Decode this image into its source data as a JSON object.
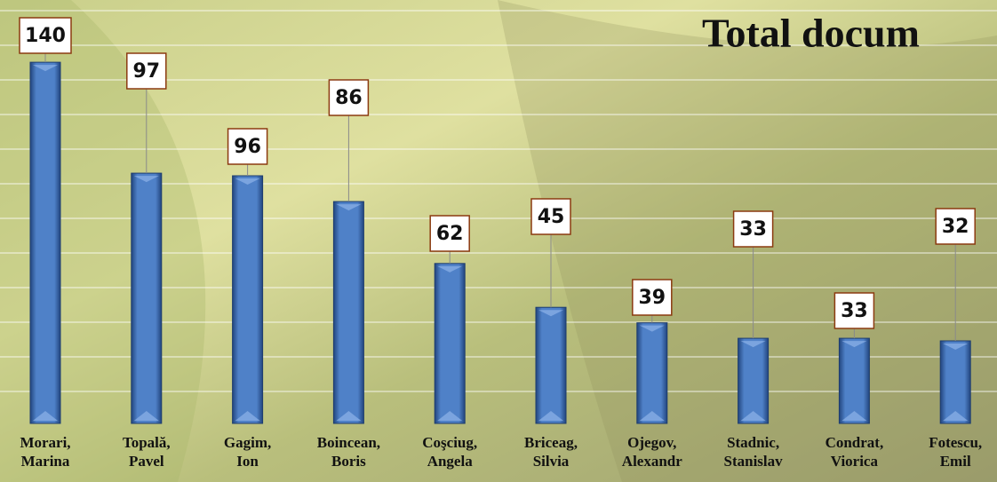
{
  "chart_data": {
    "type": "bar",
    "title": "Total docum",
    "categories": [
      [
        "Morari,",
        "Marina"
      ],
      [
        "Topală,",
        "Pavel"
      ],
      [
        "Gagim,",
        "Ion"
      ],
      [
        "Boincean,",
        "Boris"
      ],
      [
        "Coşciug,",
        "Angela"
      ],
      [
        "Briceag,",
        "Silvia"
      ],
      [
        "Ojegov,",
        "Alexandr"
      ],
      [
        "Stadnic,",
        "Stanislav"
      ],
      [
        "Condrat,",
        "Viorica"
      ],
      [
        "Fotescu,",
        "Emil"
      ]
    ],
    "values": [
      140,
      97,
      96,
      86,
      62,
      45,
      39,
      33,
      33,
      32
    ],
    "color": "#3f6fb5",
    "ylim": [
      0,
      160
    ]
  }
}
